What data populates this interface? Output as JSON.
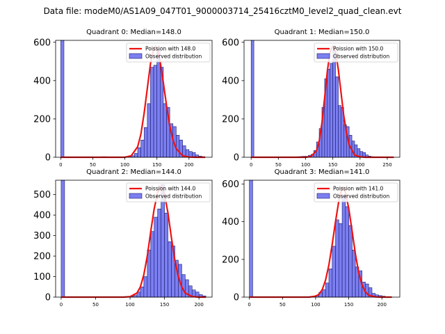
{
  "figure": {
    "suptitle": "Data file: modeM0/AS1A09_047T01_9000003714_25416cztM0_level2_quad_clean.evt",
    "colors": {
      "hist_fill": "#7b7ff0",
      "hist_edge": "#1a1a6e",
      "poisson": "#ee1111"
    }
  },
  "chart_data": [
    {
      "type": "bar",
      "title": "Quadrant 0: Median=148.0",
      "median": 148.0,
      "legend": [
        "Poission with 148.0",
        "Observed distribution"
      ],
      "legend_loc": "top-right",
      "xlim": [
        -8,
        236
      ],
      "ylim": [
        0,
        610
      ],
      "xticks": [
        0,
        50,
        100,
        150,
        200
      ],
      "yticks": [
        0,
        200,
        400,
        600
      ],
      "bin_width": 5,
      "bins": [
        [
          0,
          610
        ],
        [
          65,
          3
        ],
        [
          70,
          2
        ],
        [
          100,
          3
        ],
        [
          105,
          5
        ],
        [
          110,
          8
        ],
        [
          115,
          20
        ],
        [
          120,
          50
        ],
        [
          125,
          90
        ],
        [
          130,
          155
        ],
        [
          135,
          280
        ],
        [
          140,
          470
        ],
        [
          145,
          480
        ],
        [
          150,
          560
        ],
        [
          155,
          470
        ],
        [
          160,
          280
        ],
        [
          165,
          260
        ],
        [
          170,
          175
        ],
        [
          175,
          160
        ],
        [
          180,
          115
        ],
        [
          185,
          90
        ],
        [
          190,
          60
        ],
        [
          195,
          40
        ],
        [
          200,
          30
        ],
        [
          205,
          25
        ],
        [
          210,
          12
        ],
        [
          215,
          6
        ],
        [
          220,
          3
        ]
      ],
      "curve_x": [
        0,
        25,
        50,
        75,
        100,
        110,
        120,
        125,
        130,
        135,
        140,
        145,
        148,
        150,
        155,
        160,
        165,
        170,
        175,
        180,
        190,
        200,
        210,
        225
      ],
      "curve_y": [
        0,
        0,
        0,
        0,
        0,
        8,
        55,
        120,
        230,
        360,
        490,
        565,
        580,
        570,
        500,
        390,
        270,
        165,
        90,
        45,
        8,
        1,
        0,
        0
      ]
    },
    {
      "type": "bar",
      "title": "Quadrant 1: Median=150.0",
      "median": 150.0,
      "legend": [
        "Poission with 150.0",
        "Observed distribution"
      ],
      "legend_loc": "top-right",
      "xlim": [
        -13,
        273
      ],
      "ylim": [
        0,
        610
      ],
      "xticks": [
        0,
        50,
        100,
        150,
        200,
        250
      ],
      "yticks": [
        0,
        200,
        400,
        600
      ],
      "bin_width": 5,
      "bins": [
        [
          0,
          610
        ],
        [
          85,
          3
        ],
        [
          90,
          4
        ],
        [
          95,
          5
        ],
        [
          100,
          5
        ],
        [
          105,
          10
        ],
        [
          110,
          15
        ],
        [
          115,
          35
        ],
        [
          120,
          80
        ],
        [
          125,
          150
        ],
        [
          130,
          260
        ],
        [
          135,
          410
        ],
        [
          140,
          460
        ],
        [
          145,
          490
        ],
        [
          150,
          560
        ],
        [
          155,
          420
        ],
        [
          160,
          270
        ],
        [
          165,
          260
        ],
        [
          170,
          170
        ],
        [
          175,
          160
        ],
        [
          180,
          115
        ],
        [
          185,
          85
        ],
        [
          190,
          65
        ],
        [
          195,
          45
        ],
        [
          200,
          30
        ],
        [
          205,
          25
        ],
        [
          210,
          12
        ],
        [
          215,
          6
        ],
        [
          220,
          3
        ],
        [
          225,
          2
        ],
        [
          230,
          2
        ]
      ],
      "curve_x": [
        0,
        50,
        100,
        110,
        120,
        125,
        130,
        135,
        140,
        145,
        150,
        155,
        160,
        165,
        170,
        175,
        180,
        190,
        200,
        210,
        230,
        262
      ],
      "curve_y": [
        0,
        0,
        0,
        4,
        35,
        85,
        180,
        310,
        450,
        550,
        580,
        550,
        460,
        340,
        220,
        130,
        65,
        12,
        2,
        0,
        0,
        0
      ]
    },
    {
      "type": "bar",
      "title": "Quadrant 2: Median=144.0",
      "median": 144.0,
      "legend": [
        "Poission with 144.0",
        "Observed distribution"
      ],
      "legend_loc": "top-right",
      "xlim": [
        -8,
        219
      ],
      "ylim": [
        0,
        570
      ],
      "xticks": [
        0,
        50,
        100,
        150,
        200
      ],
      "yticks": [
        0,
        100,
        200,
        300,
        400,
        500
      ],
      "bin_width": 5,
      "bins": [
        [
          0,
          570
        ],
        [
          95,
          2
        ],
        [
          100,
          3
        ],
        [
          105,
          8
        ],
        [
          110,
          25
        ],
        [
          115,
          50
        ],
        [
          120,
          100
        ],
        [
          125,
          230
        ],
        [
          130,
          320
        ],
        [
          135,
          390
        ],
        [
          140,
          430
        ],
        [
          145,
          550
        ],
        [
          150,
          410
        ],
        [
          155,
          270
        ],
        [
          160,
          250
        ],
        [
          165,
          180
        ],
        [
          170,
          160
        ],
        [
          175,
          110
        ],
        [
          180,
          85
        ],
        [
          185,
          55
        ],
        [
          190,
          35
        ],
        [
          195,
          25
        ],
        [
          200,
          12
        ],
        [
          205,
          6
        ]
      ],
      "curve_x": [
        0,
        50,
        90,
        100,
        110,
        115,
        120,
        125,
        130,
        135,
        140,
        144,
        145,
        150,
        155,
        160,
        165,
        170,
        175,
        180,
        190,
        200,
        210
      ],
      "curve_y": [
        0,
        0,
        0,
        2,
        20,
        50,
        110,
        200,
        320,
        430,
        510,
        540,
        540,
        500,
        410,
        290,
        180,
        100,
        50,
        20,
        3,
        0,
        0
      ]
    },
    {
      "type": "bar",
      "title": "Quadrant 3: Median=141.0",
      "median": 141.0,
      "legend": [
        "Poission with 141.0",
        "Observed distribution"
      ],
      "legend_loc": "top-right",
      "xlim": [
        -8,
        227
      ],
      "ylim": [
        0,
        620
      ],
      "xticks": [
        0,
        50,
        100,
        150,
        200
      ],
      "yticks": [
        0,
        200,
        400,
        600
      ],
      "bin_width": 5,
      "bins": [
        [
          0,
          620
        ],
        [
          90,
          3
        ],
        [
          95,
          5
        ],
        [
          100,
          10
        ],
        [
          105,
          25
        ],
        [
          110,
          40
        ],
        [
          115,
          75
        ],
        [
          120,
          150
        ],
        [
          125,
          270
        ],
        [
          130,
          410
        ],
        [
          135,
          390
        ],
        [
          140,
          540
        ],
        [
          145,
          480
        ],
        [
          150,
          380
        ],
        [
          155,
          250
        ],
        [
          160,
          160
        ],
        [
          165,
          140
        ],
        [
          170,
          80
        ],
        [
          175,
          70
        ],
        [
          180,
          50
        ],
        [
          185,
          20
        ],
        [
          190,
          12
        ],
        [
          195,
          8
        ],
        [
          200,
          5
        ]
      ],
      "curve_x": [
        0,
        50,
        90,
        100,
        105,
        110,
        115,
        120,
        125,
        130,
        135,
        140,
        141,
        145,
        150,
        155,
        160,
        165,
        170,
        175,
        180,
        190,
        200,
        215
      ],
      "curve_y": [
        0,
        0,
        0,
        5,
        15,
        40,
        90,
        170,
        280,
        400,
        510,
        580,
        585,
        555,
        470,
        350,
        230,
        130,
        65,
        28,
        10,
        1,
        0,
        0
      ]
    }
  ]
}
